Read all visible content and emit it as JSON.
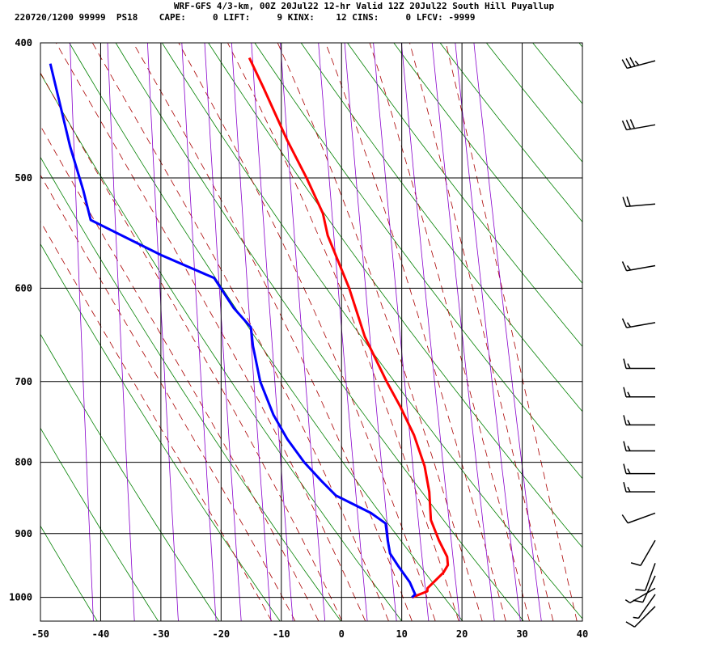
{
  "header": {
    "line1": "WRF-GFS 4/3-km, 00Z 20Jul22 12-hr Valid 12Z 20Jul22 South Hill Puyallup",
    "line2": "220720/1200 99999  PS18    CAPE:     0 LIFT:     9 KINX:    12 CINS:     0 LFCV: -9999"
  },
  "chart_data": {
    "type": "line",
    "chart_kind": "skew-T log-P sounding",
    "xlim": [
      -50,
      40
    ],
    "x_ticks": [
      -50,
      -40,
      -30,
      -20,
      -10,
      0,
      10,
      20,
      30,
      40
    ],
    "ylim": [
      1040,
      400
    ],
    "y_ticks": [
      1000,
      900,
      800,
      700,
      600,
      500,
      400
    ],
    "y_scale": "log",
    "grid": true,
    "colors": {
      "temperature": "#ff0000",
      "dewpoint": "#0000ff",
      "dry_adiabat": "#008000",
      "moist_adiabat": "#aa0000",
      "mixing_ratio": "#8800cc",
      "grid": "#000000"
    },
    "series": [
      {
        "key": "temperature",
        "values": [
          [
            1000,
            11.5
          ],
          [
            990,
            14
          ],
          [
            985,
            14
          ],
          [
            975,
            15
          ],
          [
            960,
            16.5
          ],
          [
            948,
            17.2
          ],
          [
            935,
            17
          ],
          [
            910,
            15.5
          ],
          [
            880,
            14
          ],
          [
            840,
            13.5
          ],
          [
            805,
            12.5
          ],
          [
            765,
            10.5
          ],
          [
            730,
            8
          ],
          [
            700,
            5.5
          ],
          [
            650,
            1.5
          ],
          [
            600,
            -1.5
          ],
          [
            550,
            -5.5
          ],
          [
            530,
            -6.5
          ],
          [
            500,
            -9.5
          ],
          [
            470,
            -13
          ],
          [
            430,
            -17.5
          ],
          [
            410,
            -20
          ]
        ]
      },
      {
        "key": "dewpoint",
        "values": [
          [
            1000,
            11.5
          ],
          [
            995,
            12
          ],
          [
            975,
            11
          ],
          [
            950,
            9
          ],
          [
            930,
            7.5
          ],
          [
            910,
            7
          ],
          [
            885,
            6.5
          ],
          [
            870,
            4
          ],
          [
            845,
            -2
          ],
          [
            825,
            -4.5
          ],
          [
            800,
            -7.5
          ],
          [
            770,
            -10.5
          ],
          [
            740,
            -13
          ],
          [
            700,
            -15.5
          ],
          [
            660,
            -17
          ],
          [
            640,
            -17.5
          ],
          [
            620,
            -20.5
          ],
          [
            590,
            -24
          ],
          [
            568,
            -33
          ],
          [
            536,
            -45
          ],
          [
            510,
            -46.5
          ],
          [
            475,
            -49
          ],
          [
            414,
            -53
          ]
        ]
      }
    ],
    "wind_barbs": [
      {
        "p": 412,
        "dir": 255,
        "kt": 35
      },
      {
        "p": 458,
        "dir": 260,
        "kt": 30
      },
      {
        "p": 522,
        "dir": 265,
        "kt": 20
      },
      {
        "p": 578,
        "dir": 260,
        "kt": 15
      },
      {
        "p": 635,
        "dir": 260,
        "kt": 15
      },
      {
        "p": 685,
        "dir": 270,
        "kt": 15
      },
      {
        "p": 718,
        "dir": 270,
        "kt": 15
      },
      {
        "p": 752,
        "dir": 270,
        "kt": 15
      },
      {
        "p": 785,
        "dir": 270,
        "kt": 15
      },
      {
        "p": 815,
        "dir": 270,
        "kt": 15
      },
      {
        "p": 840,
        "dir": 270,
        "kt": 15
      },
      {
        "p": 870,
        "dir": 250,
        "kt": 10
      },
      {
        "p": 910,
        "dir": 210,
        "kt": 10
      },
      {
        "p": 945,
        "dir": 200,
        "kt": 10
      },
      {
        "p": 965,
        "dir": 205,
        "kt": 10
      },
      {
        "p": 985,
        "dir": 240,
        "kt": 5
      },
      {
        "p": 995,
        "dir": 215,
        "kt": 5
      },
      {
        "p": 1015,
        "dir": 225,
        "kt": 10
      }
    ]
  }
}
